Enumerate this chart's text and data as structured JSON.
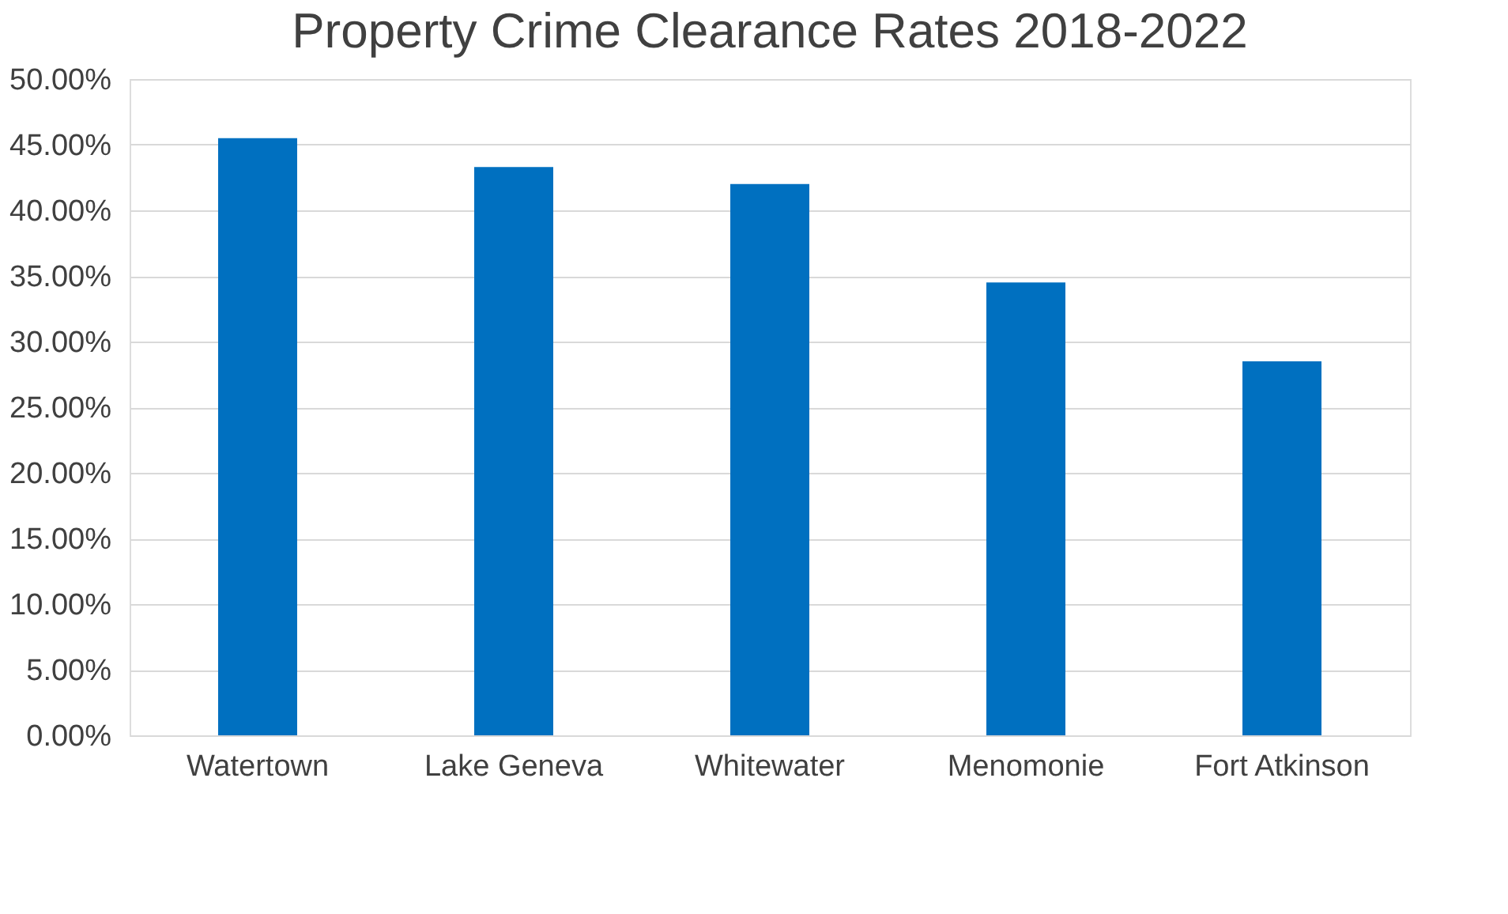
{
  "chart_data": {
    "type": "bar",
    "title": "Property Crime Clearance Rates 2018-2022",
    "categories": [
      "Watertown",
      "Lake Geneva",
      "Whitewater",
      "Menomonie",
      "Fort Atkinson"
    ],
    "values": [
      45.5,
      43.3,
      42.0,
      34.5,
      28.5
    ],
    "color": "#0070c0",
    "ylim": [
      0,
      50
    ],
    "yticks": [
      {
        "value": 0,
        "label": "0.00%"
      },
      {
        "value": 5,
        "label": "5.00%"
      },
      {
        "value": 10,
        "label": "10.00%"
      },
      {
        "value": 15,
        "label": "15.00%"
      },
      {
        "value": 20,
        "label": "20.00%"
      },
      {
        "value": 25,
        "label": "25.00%"
      },
      {
        "value": 30,
        "label": "30.00%"
      },
      {
        "value": 35,
        "label": "35.00%"
      },
      {
        "value": 40,
        "label": "40.00%"
      },
      {
        "value": 45,
        "label": "45.00%"
      },
      {
        "value": 50,
        "label": "50.00%"
      }
    ],
    "grid": "y"
  }
}
